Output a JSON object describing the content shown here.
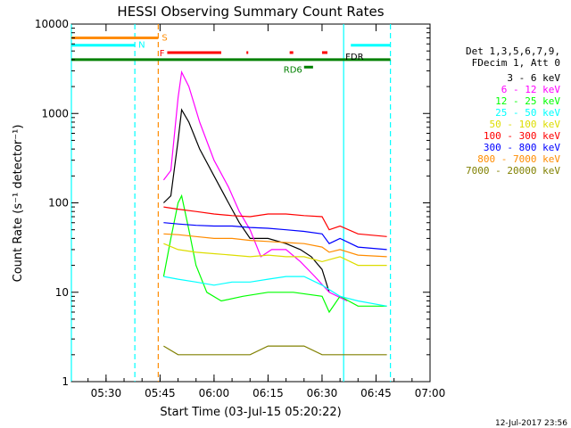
{
  "chart_data": {
    "type": "line",
    "title": "HESSI Observing Summary Count Rates",
    "xlabel": "Start Time (03-Jul-15 05:20:22)",
    "ylabel": "Count Rate (s⁻¹ detector⁻¹)",
    "yscale": "log",
    "ylim": [
      1,
      10000
    ],
    "xlim": [
      "05:20:22",
      "07:00:00"
    ],
    "x_ticks": [
      "05:30",
      "05:45",
      "06:00",
      "06:15",
      "06:30",
      "06:45",
      "07:00"
    ],
    "y_ticks": [
      "1",
      "10",
      "100",
      "1000",
      "10000"
    ],
    "grid": false,
    "legend_position": "right",
    "legend_header": [
      "Det 1,3,5,6,7,9,",
      "FDecim 1, Att 0"
    ],
    "timestamp": "12-Jul-2017 23:56",
    "series": [
      {
        "name": "3 - 6 keV",
        "color": "#000000",
        "points": [
          [
            "05:46:00",
            100
          ],
          [
            "05:48:00",
            120
          ],
          [
            "05:50:00",
            500
          ],
          [
            "05:51:00",
            1100
          ],
          [
            "05:53:00",
            800
          ],
          [
            "05:56:00",
            400
          ],
          [
            "06:00:00",
            200
          ],
          [
            "06:04:00",
            100
          ],
          [
            "06:07:00",
            60
          ],
          [
            "06:10:00",
            40
          ],
          [
            "06:15:00",
            40
          ],
          [
            "06:20:00",
            35
          ],
          [
            "06:24:00",
            30
          ],
          [
            "06:27:00",
            25
          ],
          [
            "06:30:00",
            18
          ],
          [
            "06:32:00",
            10
          ]
        ]
      },
      {
        "name": "6 - 12 keV",
        "color": "#ff00ff",
        "points": [
          [
            "05:46:00",
            180
          ],
          [
            "05:48:00",
            230
          ],
          [
            "05:50:00",
            1500
          ],
          [
            "05:51:00",
            2900
          ],
          [
            "05:53:00",
            2000
          ],
          [
            "05:56:00",
            800
          ],
          [
            "06:00:00",
            300
          ],
          [
            "06:04:00",
            150
          ],
          [
            "06:07:00",
            80
          ],
          [
            "06:10:00",
            50
          ],
          [
            "06:13:00",
            25
          ],
          [
            "06:16:00",
            30
          ],
          [
            "06:20:00",
            30
          ],
          [
            "06:24:00",
            22
          ],
          [
            "06:28:00",
            15
          ],
          [
            "06:32:00",
            10
          ],
          [
            "06:37:00",
            8
          ]
        ]
      },
      {
        "name": "12 - 25 keV",
        "color": "#00ff00",
        "points": [
          [
            "05:46:00",
            15
          ],
          [
            "05:48:00",
            40
          ],
          [
            "05:50:00",
            100
          ],
          [
            "05:51:00",
            120
          ],
          [
            "05:53:00",
            50
          ],
          [
            "05:55:00",
            20
          ],
          [
            "05:58:00",
            10
          ],
          [
            "06:02:00",
            8
          ],
          [
            "06:08:00",
            9
          ],
          [
            "06:15:00",
            10
          ],
          [
            "06:22:00",
            10
          ],
          [
            "06:30:00",
            9
          ],
          [
            "06:32:00",
            6
          ],
          [
            "06:35:00",
            9
          ],
          [
            "06:40:00",
            7
          ],
          [
            "06:48:00",
            7
          ]
        ]
      },
      {
        "name": "25 - 50 keV",
        "color": "#00ffff",
        "points": [
          [
            "05:46:00",
            15
          ],
          [
            "05:50:00",
            14
          ],
          [
            "05:55:00",
            13
          ],
          [
            "06:00:00",
            12
          ],
          [
            "06:05:00",
            13
          ],
          [
            "06:10:00",
            13
          ],
          [
            "06:15:00",
            14
          ],
          [
            "06:20:00",
            15
          ],
          [
            "06:25:00",
            15
          ],
          [
            "06:30:00",
            12
          ],
          [
            "06:35:00",
            9
          ],
          [
            "06:40:00",
            8
          ],
          [
            "06:48:00",
            7
          ]
        ]
      },
      {
        "name": "50 - 100 keV",
        "color": "#dddd00",
        "points": [
          [
            "05:46:00",
            35
          ],
          [
            "05:50:00",
            30
          ],
          [
            "05:55:00",
            28
          ],
          [
            "06:00:00",
            27
          ],
          [
            "06:05:00",
            26
          ],
          [
            "06:10:00",
            25
          ],
          [
            "06:15:00",
            26
          ],
          [
            "06:20:00",
            25
          ],
          [
            "06:25:00",
            25
          ],
          [
            "06:30:00",
            22
          ],
          [
            "06:35:00",
            25
          ],
          [
            "06:40:00",
            20
          ],
          [
            "06:48:00",
            20
          ]
        ]
      },
      {
        "name": "100 - 300 keV",
        "color": "#ff0000",
        "points": [
          [
            "05:46:00",
            90
          ],
          [
            "05:50:00",
            85
          ],
          [
            "05:55:00",
            80
          ],
          [
            "06:00:00",
            75
          ],
          [
            "06:05:00",
            72
          ],
          [
            "06:10:00",
            70
          ],
          [
            "06:15:00",
            75
          ],
          [
            "06:20:00",
            75
          ],
          [
            "06:25:00",
            72
          ],
          [
            "06:30:00",
            70
          ],
          [
            "06:32:00",
            50
          ],
          [
            "06:35:00",
            55
          ],
          [
            "06:40:00",
            45
          ],
          [
            "06:48:00",
            42
          ]
        ]
      },
      {
        "name": "300 - 800 keV",
        "color": "#0000ff",
        "points": [
          [
            "05:46:00",
            60
          ],
          [
            "05:50:00",
            58
          ],
          [
            "05:55:00",
            56
          ],
          [
            "06:00:00",
            55
          ],
          [
            "06:05:00",
            55
          ],
          [
            "06:10:00",
            53
          ],
          [
            "06:15:00",
            52
          ],
          [
            "06:20:00",
            50
          ],
          [
            "06:25:00",
            48
          ],
          [
            "06:30:00",
            45
          ],
          [
            "06:32:00",
            35
          ],
          [
            "06:35:00",
            40
          ],
          [
            "06:40:00",
            32
          ],
          [
            "06:48:00",
            30
          ]
        ]
      },
      {
        "name": "800 - 7000 keV",
        "color": "#ff8c00",
        "points": [
          [
            "05:46:00",
            45
          ],
          [
            "05:50:00",
            44
          ],
          [
            "05:55:00",
            42
          ],
          [
            "06:00:00",
            40
          ],
          [
            "06:05:00",
            40
          ],
          [
            "06:10:00",
            38
          ],
          [
            "06:15:00",
            37
          ],
          [
            "06:20:00",
            36
          ],
          [
            "06:25:00",
            35
          ],
          [
            "06:30:00",
            32
          ],
          [
            "06:32:00",
            28
          ],
          [
            "06:35:00",
            30
          ],
          [
            "06:40:00",
            26
          ],
          [
            "06:48:00",
            25
          ]
        ]
      },
      {
        "name": "7000 - 20000 keV",
        "color": "#808000",
        "points": [
          [
            "05:46:00",
            2.5
          ],
          [
            "05:50:00",
            2.0
          ],
          [
            "05:55:00",
            2.0
          ],
          [
            "06:00:00",
            2.0
          ],
          [
            "06:05:00",
            2.0
          ],
          [
            "06:10:00",
            2.0
          ],
          [
            "06:15:00",
            2.5
          ],
          [
            "06:20:00",
            2.5
          ],
          [
            "06:25:00",
            2.5
          ],
          [
            "06:30:00",
            2.0
          ],
          [
            "06:35:00",
            2.0
          ],
          [
            "06:40:00",
            2.0
          ],
          [
            "06:48:00",
            2.0
          ]
        ]
      }
    ],
    "flags": [
      {
        "label": "S",
        "color": "#ff8c00",
        "value": 7000,
        "segments": [
          [
            "05:20:22",
            "05:44:30"
          ]
        ]
      },
      {
        "label": "N",
        "color": "#00ffff",
        "value": 5800,
        "segments": [
          [
            "05:20:22",
            "05:38:00"
          ],
          [
            "06:38:00",
            "06:49:00"
          ]
        ]
      },
      {
        "label": "F",
        "color": "#ff0000",
        "value": 4800,
        "segments": [
          [
            "05:47:00",
            "06:02:00"
          ],
          [
            "06:09:00",
            "06:09:30"
          ],
          [
            "06:21:00",
            "06:22:00"
          ],
          [
            "06:30:00",
            "06:31:30"
          ]
        ]
      },
      {
        "label": "RD6",
        "color": "#008000",
        "value": 3300,
        "segments": [
          [
            "06:25:00",
            "06:27:30"
          ]
        ]
      },
      {
        "label": "FDR",
        "color": "#000000",
        "value": 4000,
        "segments": []
      }
    ],
    "vertical_markers": [
      {
        "time": "05:20:22",
        "color": "#00ffff",
        "style": "solid"
      },
      {
        "time": "05:38:00",
        "color": "#00ffff",
        "style": "dashed"
      },
      {
        "time": "05:44:30",
        "color": "#ff8c00",
        "style": "dashed"
      },
      {
        "time": "06:36:00",
        "color": "#00ffff",
        "style": "solid"
      },
      {
        "time": "06:49:00",
        "color": "#00ffff",
        "style": "dashed"
      }
    ],
    "green_line": {
      "value": 4000,
      "color": "#008000",
      "start": "05:20:22",
      "end": "06:49:00"
    }
  }
}
